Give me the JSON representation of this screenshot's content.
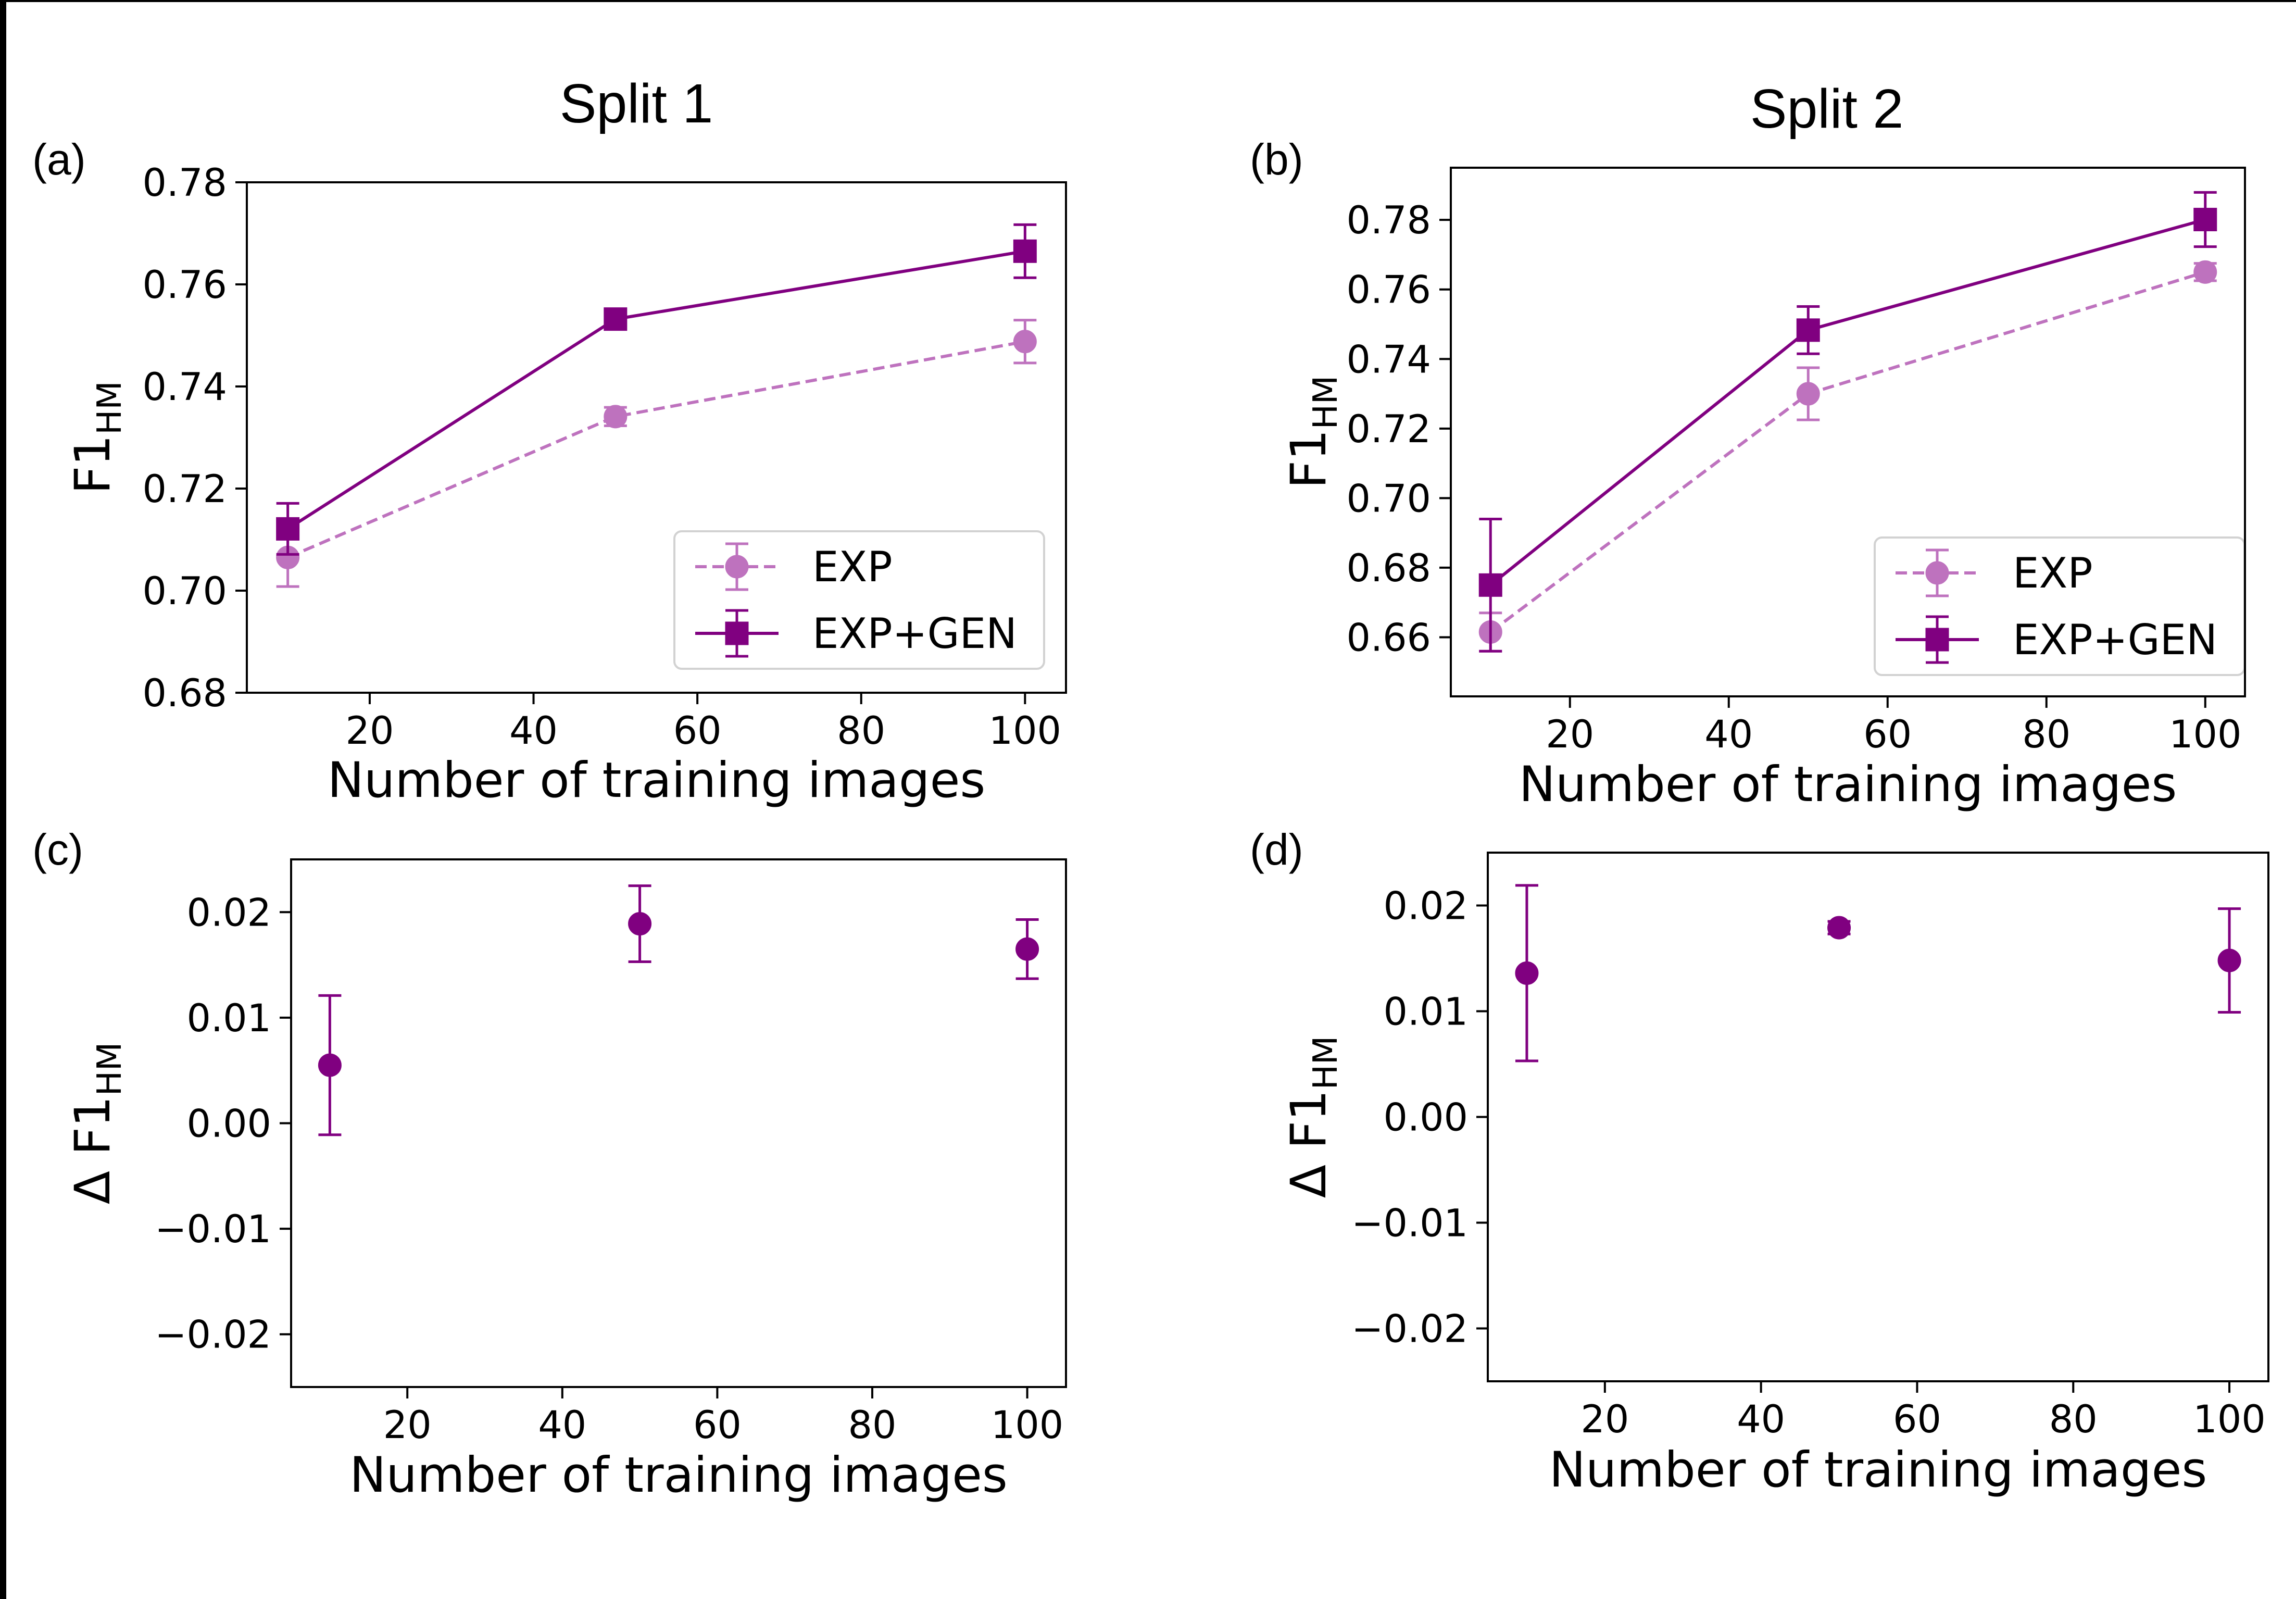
{
  "figure": {
    "split_titles": [
      "Split 1",
      "Split 2"
    ],
    "panel_labels": [
      "(a)",
      "(b)",
      "(c)",
      "(d)"
    ],
    "legend": [
      {
        "label": "EXP"
      },
      {
        "label": "EXP+GEN"
      }
    ],
    "colors": {
      "exp": "#be72be",
      "expgen": "#800080",
      "delta": "#800080"
    }
  },
  "chart_data": [
    {
      "type": "line",
      "panel": "(a)",
      "title": "Split 1",
      "xlabel": "Number of training images",
      "ylabel": "F1",
      "ylabel_subscript": "HM",
      "xlim": [
        5,
        105
      ],
      "ylim": [
        0.68,
        0.78
      ],
      "xticks": [
        20,
        40,
        60,
        80,
        100
      ],
      "yticks": [
        0.68,
        0.7,
        0.72,
        0.74,
        0.76,
        0.78
      ],
      "ytick_labels": [
        "0.68",
        "0.70",
        "0.72",
        "0.74",
        "0.76",
        "0.78"
      ],
      "legend_position": "lower-right",
      "x": [
        10,
        50,
        100
      ],
      "series": [
        {
          "name": "EXP",
          "style": "dashed",
          "marker": "circle",
          "values": [
            0.7065,
            0.7341,
            0.7488
          ],
          "errors": [
            0.0057,
            0.0018,
            0.0042
          ]
        },
        {
          "name": "EXP+GEN",
          "style": "solid",
          "marker": "square",
          "values": [
            0.7121,
            0.7532,
            0.7665
          ],
          "errors": [
            0.005,
            0.002,
            0.0052
          ]
        }
      ]
    },
    {
      "type": "line",
      "panel": "(b)",
      "title": "Split 2",
      "xlabel": "Number of training images",
      "ylabel": "F1",
      "ylabel_subscript": "HM",
      "xlim": [
        5,
        105
      ],
      "ylim": [
        0.643,
        0.795
      ],
      "xticks": [
        20,
        40,
        60,
        80,
        100
      ],
      "yticks": [
        0.66,
        0.68,
        0.7,
        0.72,
        0.74,
        0.76,
        0.78
      ],
      "ytick_labels": [
        "0.66",
        "0.68",
        "0.70",
        "0.72",
        "0.74",
        "0.76",
        "0.78"
      ],
      "legend_position": "lower-right",
      "x": [
        10,
        50,
        100
      ],
      "series": [
        {
          "name": "EXP",
          "style": "dashed",
          "marker": "circle",
          "values": [
            0.6615,
            0.73,
            0.765
          ],
          "errors": [
            0.0055,
            0.0075,
            0.0025
          ]
        },
        {
          "name": "EXP+GEN",
          "style": "solid",
          "marker": "square",
          "values": [
            0.675,
            0.7483,
            0.7801
          ],
          "errors": [
            0.019,
            0.0068,
            0.0078
          ]
        }
      ]
    },
    {
      "type": "scatter",
      "panel": "(c)",
      "xlabel": "Number of training images",
      "ylabel": "Δ F1",
      "ylabel_subscript": "HM",
      "xlim": [
        5,
        105
      ],
      "ylim": [
        -0.025,
        0.025
      ],
      "xticks": [
        20,
        40,
        60,
        80,
        100
      ],
      "yticks": [
        -0.02,
        -0.01,
        0.0,
        0.01,
        0.02
      ],
      "ytick_labels": [
        "−0.02",
        "−0.01",
        "0.00",
        "0.01",
        "0.02"
      ],
      "x": [
        10,
        50,
        100
      ],
      "series": [
        {
          "values": [
            0.0055,
            0.0189,
            0.0165
          ],
          "errors": [
            0.0066,
            0.0036,
            0.0028
          ]
        }
      ]
    },
    {
      "type": "scatter",
      "panel": "(d)",
      "xlabel": "Number of training images",
      "ylabel": "Δ F1",
      "ylabel_subscript": "HM",
      "xlim": [
        5,
        105
      ],
      "ylim": [
        -0.025,
        0.025
      ],
      "xticks": [
        20,
        40,
        60,
        80,
        100
      ],
      "yticks": [
        -0.02,
        -0.01,
        0.0,
        0.01,
        0.02
      ],
      "ytick_labels": [
        "−0.02",
        "−0.01",
        "0.00",
        "0.01",
        "0.02"
      ],
      "x": [
        10,
        50,
        100
      ],
      "series": [
        {
          "values": [
            0.0136,
            0.0179,
            0.0148
          ],
          "errors": [
            0.0083,
            0.0006,
            0.0049
          ]
        }
      ]
    }
  ]
}
